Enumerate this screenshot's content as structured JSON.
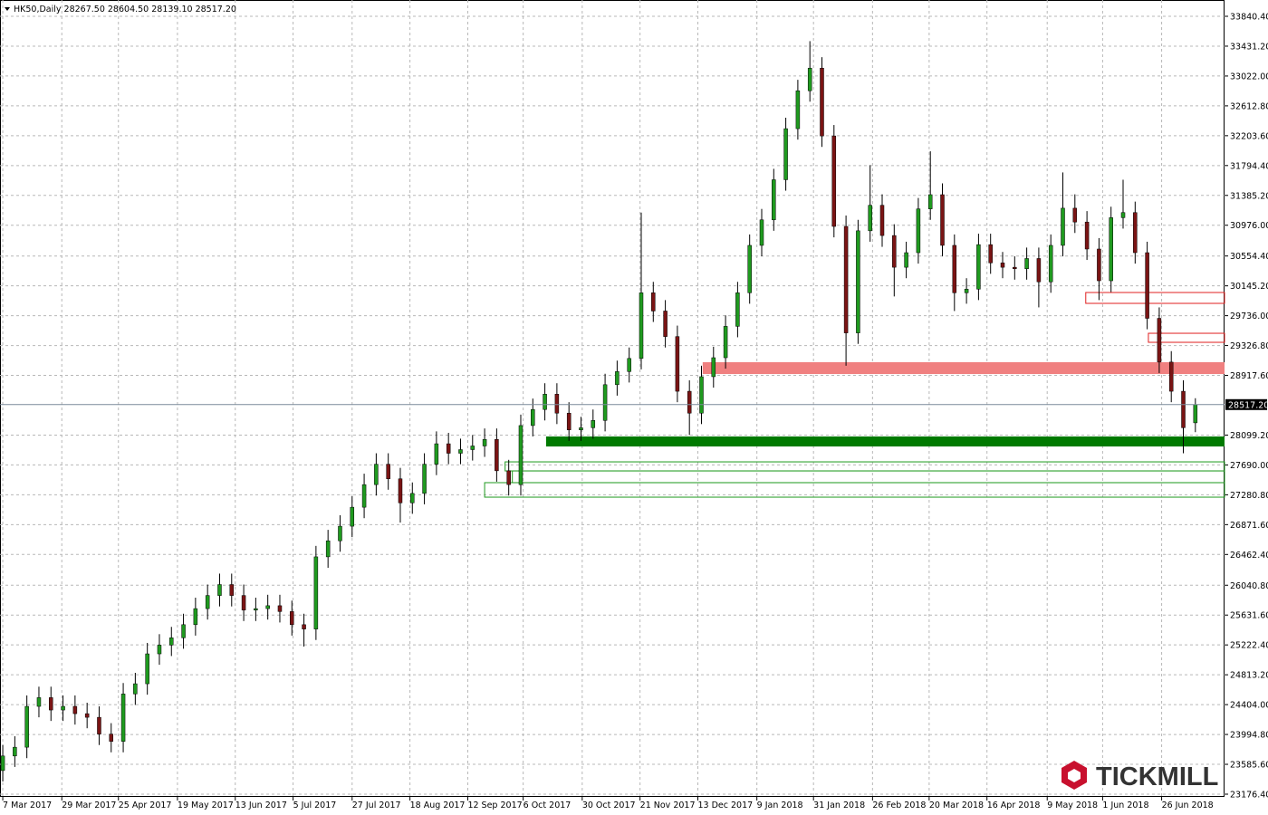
{
  "chart_data": {
    "type": "candlestick",
    "header": "HK50,Daily  28267.50 28604.50 28139.10 28517.20",
    "logo": "TICKMILL",
    "up_color": "#1f9a1f",
    "down_color": "#7a1414",
    "wick_color": "#000000",
    "grid": true,
    "xlim": [
      -0.23,
      101.42
    ],
    "ylim": [
      23139,
      34064
    ],
    "xticks": [
      {
        "value": 0,
        "label": "7 Mar 2017"
      },
      {
        "value": 4.9,
        "label": "29 Mar 2017"
      },
      {
        "value": 9.6,
        "label": "25 Apr 2017"
      },
      {
        "value": 14.5,
        "label": "19 May 2017"
      },
      {
        "value": 19.3,
        "label": "13 Jun 2017"
      },
      {
        "value": 24.1,
        "label": "5 Jul 2017"
      },
      {
        "value": 29,
        "label": "27 Jul 2017"
      },
      {
        "value": 33.8,
        "label": "18 Aug 2017"
      },
      {
        "value": 38.6,
        "label": "12 Sep 2017"
      },
      {
        "value": 43.2,
        "label": "6 Oct 2017"
      },
      {
        "value": 48.1,
        "label": "30 Oct 2017"
      },
      {
        "value": 52.9,
        "label": "21 Nov 2017"
      },
      {
        "value": 57.7,
        "label": "13 Dec 2017"
      },
      {
        "value": 62.6,
        "label": "9 Jan 2018"
      },
      {
        "value": 67.3,
        "label": "31 Jan 2018"
      },
      {
        "value": 72.2,
        "label": "26 Feb 2018"
      },
      {
        "value": 76.9,
        "label": "20 Mar 2018"
      },
      {
        "value": 81.7,
        "label": "16 Apr 2018"
      },
      {
        "value": 86.7,
        "label": "9 May 2018"
      },
      {
        "value": 91.3,
        "label": "1 Jun 2018"
      },
      {
        "value": 96.2,
        "label": "26 Jun 2018"
      }
    ],
    "yticks": [
      {
        "value": 33840.4,
        "label": "33840.40"
      },
      {
        "value": 33431.2,
        "label": "33431.20"
      },
      {
        "value": 33022,
        "label": "33022.00"
      },
      {
        "value": 32612.8,
        "label": "32612.80"
      },
      {
        "value": 32203.6,
        "label": "32203.60"
      },
      {
        "value": 31794.4,
        "label": "31794.40"
      },
      {
        "value": 31385.2,
        "label": "31385.20"
      },
      {
        "value": 30976,
        "label": "30976.00"
      },
      {
        "value": 30554.4,
        "label": "30554.40"
      },
      {
        "value": 30145.2,
        "label": "30145.20"
      },
      {
        "value": 29736,
        "label": "29736.00"
      },
      {
        "value": 29326.8,
        "label": "29326.80"
      },
      {
        "value": 28917.6,
        "label": "28917.60"
      },
      {
        "value": 28099.2,
        "label": "28099.20"
      },
      {
        "value": 27690,
        "label": "27690.00"
      },
      {
        "value": 27280.8,
        "label": "27280.80"
      },
      {
        "value": 26871.6,
        "label": "26871.60"
      },
      {
        "value": 26462.4,
        "label": "26462.40"
      },
      {
        "value": 26040.8,
        "label": "26040.80"
      },
      {
        "value": 25631.6,
        "label": "25631.60"
      },
      {
        "value": 25222.4,
        "label": "25222.40"
      },
      {
        "value": 24813.2,
        "label": "24813.20"
      },
      {
        "value": 24404,
        "label": "24404.00"
      },
      {
        "value": 23994.8,
        "label": "23994.80"
      },
      {
        "value": 23585.6,
        "label": "23585.60"
      },
      {
        "value": 23176.4,
        "label": "23176.40"
      }
    ],
    "last_price": {
      "value": 28517.2,
      "label": "28517.20"
    },
    "zones": [
      {
        "x0": 58.1,
        "low": 28936,
        "high": 29098,
        "fill": "#f08080",
        "stroke": "none"
      },
      {
        "x0": 45.1,
        "low": 27943,
        "high": 28080,
        "fill": "#007a00",
        "stroke": "none"
      },
      {
        "x0": 41.7,
        "low": 27608,
        "high": 27732,
        "fill": "none",
        "stroke": "#1f9a1f"
      },
      {
        "x0": 42.3,
        "low": 27447,
        "high": 27608,
        "fill": "none",
        "stroke": "#1f9a1f"
      },
      {
        "x0": 40,
        "low": 27248,
        "high": 27447,
        "fill": "none",
        "stroke": "#1f9a1f"
      },
      {
        "x0": 89.9,
        "low": 29905,
        "high": 30054,
        "fill": "none",
        "stroke": "#e02020"
      },
      {
        "x0": 95.1,
        "low": 29371,
        "high": 29495,
        "fill": "none",
        "stroke": "#e02020"
      }
    ],
    "open": [
      23500,
      23700,
      23820,
      24380,
      24500,
      24330,
      24380,
      24280,
      24230,
      24000,
      23900,
      24550,
      24690,
      25100,
      25220,
      25320,
      25500,
      25720,
      25900,
      26050,
      25900,
      25700,
      25720,
      25760,
      25680,
      25500,
      25440,
      26430,
      26650,
      26850,
      27110,
      27420,
      27700,
      27500,
      27170,
      27300,
      27700,
      27980,
      27850,
      27900,
      27950,
      28040,
      27610,
      27420,
      28230,
      28450,
      28660,
      28400,
      28170,
      28200,
      28300,
      28790,
      28970,
      29150,
      30050,
      29800,
      29450,
      28700,
      28400,
      28900,
      29160,
      29590,
      30050,
      30700,
      31050,
      31600,
      32300,
      32820,
      33130,
      32200,
      30960,
      29500,
      30900,
      31250,
      30835,
      30400,
      30600,
      31200,
      31395,
      30700,
      30050,
      30100,
      30710,
      30460,
      30400,
      30380,
      30520,
      30200,
      30700,
      31210,
      31020,
      30650,
      30215,
      31080,
      31150,
      30600,
      29700,
      29100,
      28700,
      28267.5
    ],
    "high": [
      23850,
      23970,
      24530,
      24650,
      24650,
      24530,
      24530,
      24430,
      24380,
      24150,
      24700,
      24840,
      25250,
      25370,
      25470,
      25650,
      25870,
      26050,
      26200,
      26200,
      26050,
      25870,
      25910,
      25910,
      25830,
      25650,
      26580,
      26800,
      27000,
      27260,
      27570,
      27850,
      27850,
      27650,
      27450,
      27850,
      28150,
      28130,
      28050,
      28100,
      28190,
      28190,
      27760,
      28380,
      28600,
      28810,
      28810,
      28550,
      28350,
      28450,
      28940,
      29120,
      29300,
      31150,
      30200,
      29950,
      29600,
      28850,
      29050,
      29310,
      29740,
      30200,
      30850,
      31200,
      31750,
      32450,
      32970,
      33500,
      33280,
      32350,
      31110,
      31050,
      31800,
      31400,
      30990,
      30750,
      31350,
      31990,
      31550,
      30850,
      30250,
      30860,
      30860,
      30610,
      30550,
      30670,
      30670,
      30850,
      31700,
      31400,
      31170,
      30800,
      31230,
      31600,
      31300,
      30750,
      29850,
      29250,
      28850,
      28604.5
    ],
    "low": [
      23350,
      23550,
      23670,
      24230,
      24180,
      24180,
      24130,
      24080,
      23850,
      23750,
      23750,
      24400,
      24540,
      24950,
      25070,
      25170,
      25350,
      25570,
      25750,
      25750,
      25550,
      25550,
      25570,
      25530,
      25350,
      25200,
      25290,
      26280,
      26500,
      26700,
      26960,
      27270,
      27350,
      26900,
      27020,
      27150,
      27550,
      27700,
      27700,
      27750,
      27800,
      27460,
      27270,
      27270,
      28080,
      28300,
      28250,
      28020,
      28020,
      28050,
      28150,
      28640,
      28820,
      29000,
      29650,
      29300,
      28550,
      28100,
      28250,
      28750,
      29010,
      29440,
      29900,
      30550,
      30900,
      31450,
      32150,
      32670,
      32050,
      30810,
      29050,
      29350,
      30750,
      30680,
      30000,
      30250,
      30450,
      31050,
      30550,
      29800,
      29900,
      29950,
      30310,
      30250,
      30230,
      30230,
      29850,
      30050,
      30550,
      30870,
      30500,
      29950,
      30060,
      30930,
      30450,
      29550,
      28950,
      28550,
      27850,
      28139.1
    ],
    "close": [
      23700,
      23820,
      24380,
      24500,
      24330,
      24380,
      24280,
      24230,
      24000,
      23900,
      24550,
      24690,
      25100,
      25220,
      25320,
      25500,
      25720,
      25900,
      26050,
      25900,
      25700,
      25720,
      25760,
      25680,
      25500,
      25440,
      26430,
      26650,
      26850,
      27110,
      27420,
      27700,
      27500,
      27170,
      27300,
      27700,
      27980,
      27850,
      27900,
      27950,
      28040,
      27610,
      27420,
      28230,
      28450,
      28660,
      28400,
      28170,
      28200,
      28300,
      28790,
      28970,
      29150,
      30050,
      29800,
      29450,
      28700,
      28400,
      28900,
      29160,
      29590,
      30050,
      30700,
      31050,
      31600,
      32300,
      32820,
      33130,
      32200,
      30960,
      29500,
      30900,
      31250,
      30835,
      30400,
      30600,
      31200,
      31395,
      30700,
      30050,
      30100,
      30710,
      30460,
      30400,
      30380,
      30520,
      30200,
      30700,
      31210,
      31020,
      30650,
      30215,
      31080,
      31150,
      30600,
      29700,
      29100,
      28700,
      28200,
      28517.2
    ]
  }
}
